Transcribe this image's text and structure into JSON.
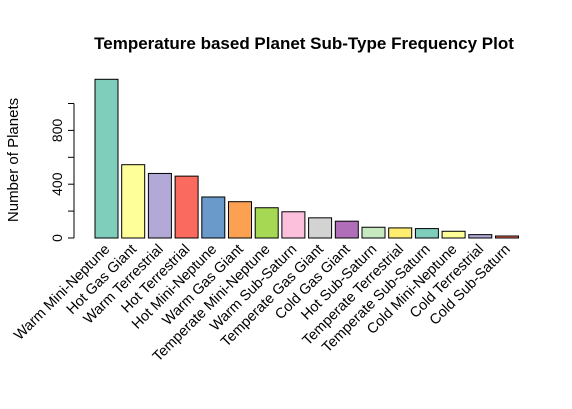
{
  "chart_data": {
    "type": "bar",
    "title": "Temperature based Planet Sub-Type Frequency Plot",
    "xlabel": "",
    "ylabel": "Number of Planets",
    "ylim": [
      0,
      1000
    ],
    "yticks": [
      0,
      400,
      800
    ],
    "grid": false,
    "legend": "none",
    "categories": [
      "Warm Mini-Neptune",
      "Hot Gas Giant",
      "Warm Terrestrial",
      "Hot Terrestrial",
      "Hot Mini-Neptune",
      "Warm Gas Giant",
      "Temperate Mini-Neptune",
      "Warm Sub-Saturn",
      "Temperate Gas Giant",
      "Cold Gas Giant",
      "Hot Sub-Saturn",
      "Temperate Terrestrial",
      "Temperate Sub-Saturn",
      "Cold Mini-Neptune",
      "Cold Terrestrial",
      "Cold Sub-Saturn"
    ],
    "values": [
      1180,
      545,
      480,
      460,
      305,
      270,
      225,
      195,
      150,
      125,
      80,
      75,
      70,
      50,
      25,
      15
    ],
    "colors": [
      "#7fcdbb",
      "#ffff99",
      "#b3a9d6",
      "#fb6a5e",
      "#6a9ac9",
      "#fca052",
      "#a6d854",
      "#fcc0dd",
      "#d3d3d3",
      "#b06eb8",
      "#c7e9c0",
      "#ffed6f",
      "#7fcdbb",
      "#ffff99",
      "#b3a9d6",
      "#fb6a5e"
    ]
  }
}
